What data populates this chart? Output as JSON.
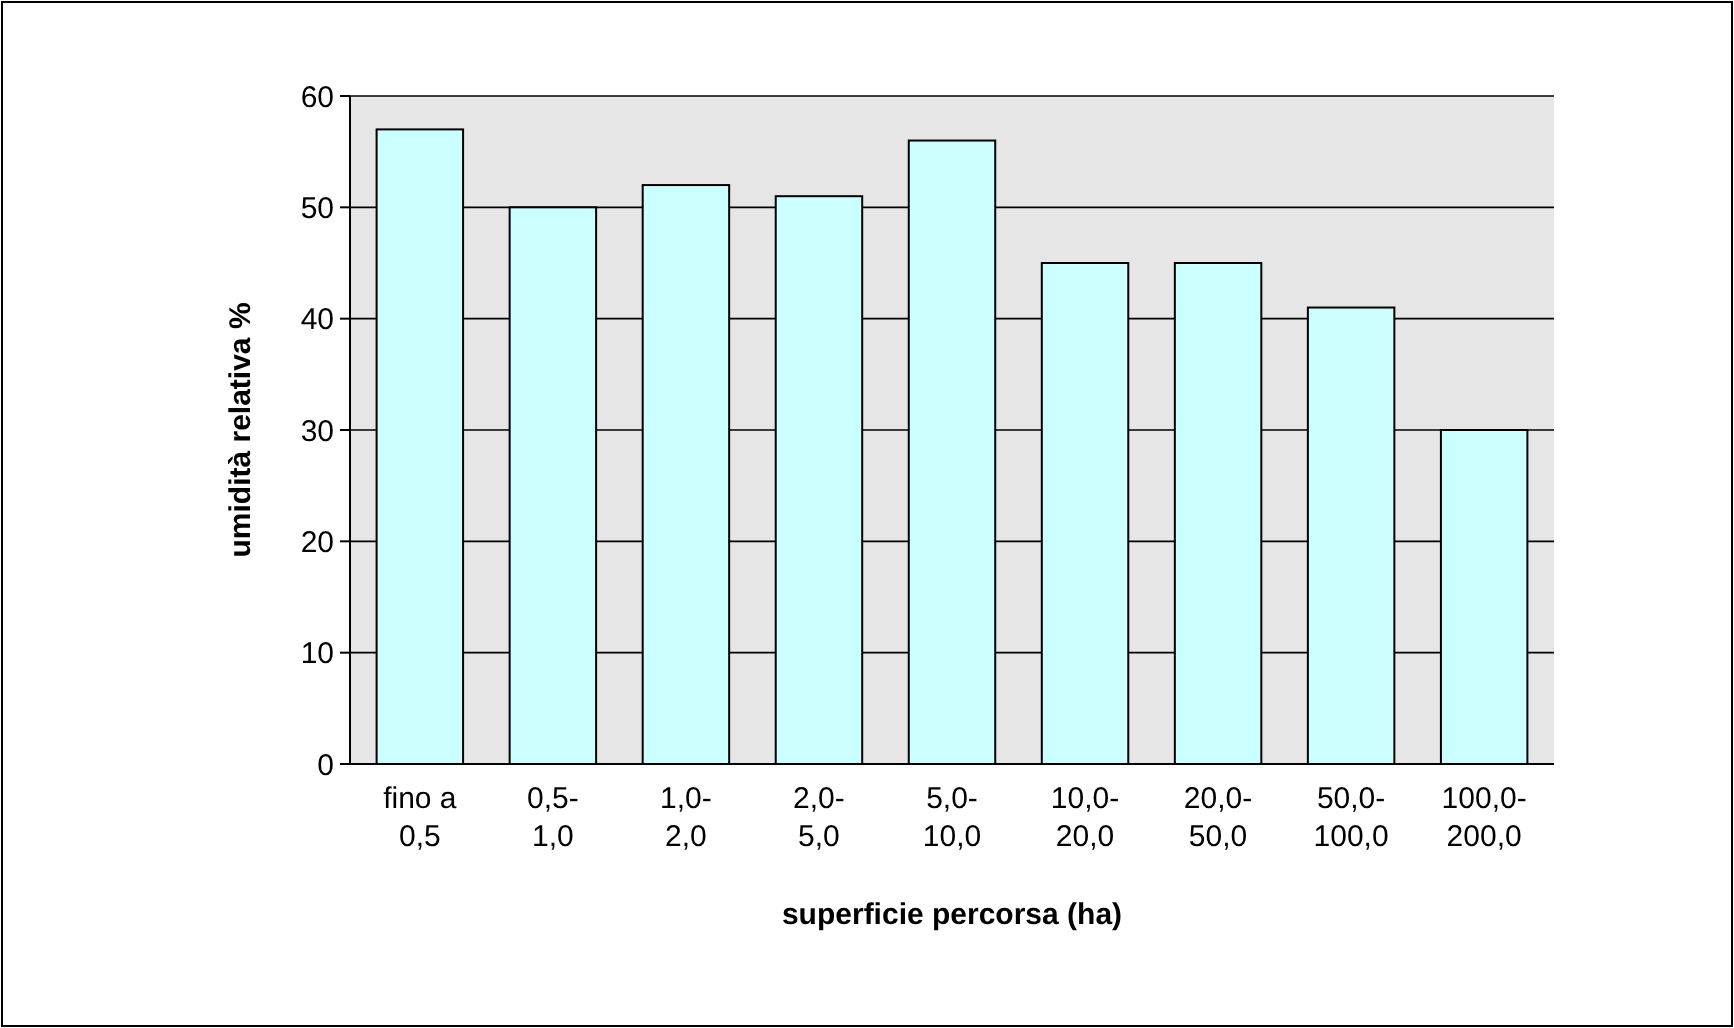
{
  "chart_data": {
    "type": "bar",
    "xlabel": "superficie percorsa (ha)",
    "ylabel": "umidità relativa %",
    "categories": [
      "fino a 0,5",
      "0,5-1,0",
      "1,0-2,0",
      "2,0-5,0",
      "5,0-10,0",
      "10,0-20,0",
      "20,0-50,0",
      "50,0-100,0",
      "100,0-200,0"
    ],
    "values": [
      57,
      50,
      52,
      51,
      56,
      45,
      45,
      41,
      30
    ],
    "color": "#ccffff",
    "ylim": [
      0,
      60
    ],
    "yticks": [
      0,
      10,
      20,
      30,
      40,
      50,
      60
    ],
    "grid": "y"
  }
}
